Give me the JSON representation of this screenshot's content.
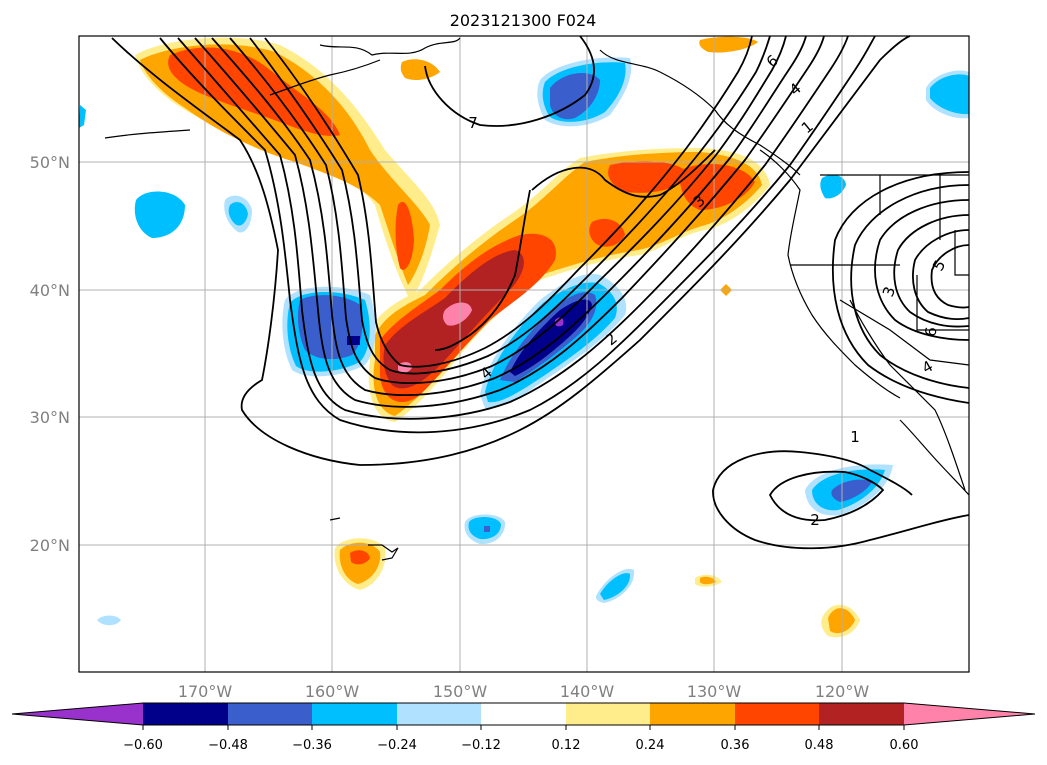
{
  "title": "2023121300 F024",
  "map": {
    "lat_labels": [
      "50°N",
      "40°N",
      "30°N",
      "20°N"
    ],
    "lon_labels": [
      "170°W",
      "160°W",
      "150°W",
      "140°W",
      "130°W",
      "120°W"
    ],
    "gridlines": true,
    "contour_labels": [
      "7",
      "6",
      "4",
      "1",
      "3",
      "4",
      "2",
      "1",
      "2",
      "3",
      "5",
      "6",
      "4"
    ]
  },
  "colorbar": {
    "ticks": [
      "−0.60",
      "−0.48",
      "−0.36",
      "−0.24",
      "−0.12",
      "0.12",
      "0.24",
      "0.36",
      "0.48",
      "0.60"
    ],
    "colors": [
      "#9932cc",
      "#00008b",
      "#3a5fcd",
      "#00bfff",
      "#b0e2ff",
      "#ffffff",
      "#ffec8b",
      "#ffa500",
      "#ff4500",
      "#b22222",
      "#ff82ab"
    ],
    "extend": "both"
  }
}
